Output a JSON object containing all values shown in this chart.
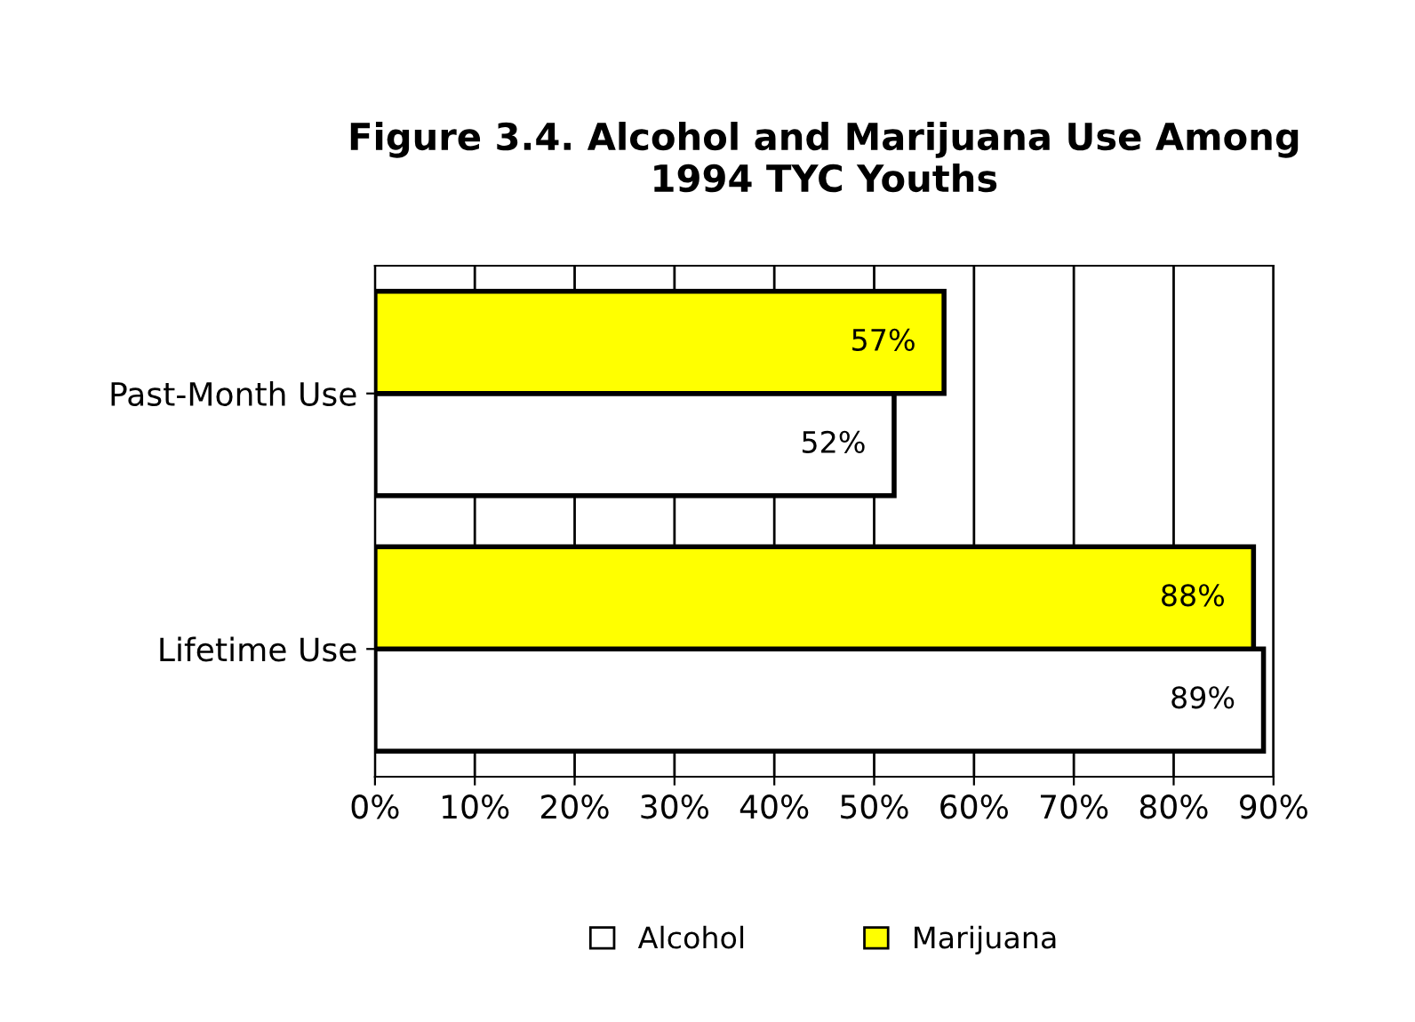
{
  "chart_data": {
    "type": "bar",
    "orientation": "horizontal",
    "title": "Figure 3.4. Alcohol and Marijuana Use Among\n1994 TYC Youths",
    "categories": [
      "Past-Month Use",
      "Lifetime Use"
    ],
    "series": [
      {
        "name": "Alcohol",
        "color": "#ffffff",
        "values": [
          52,
          89
        ],
        "value_labels": [
          "52%",
          "89%"
        ]
      },
      {
        "name": "Marijuana",
        "color": "#ffff00",
        "values": [
          57,
          88
        ],
        "value_labels": [
          "57%",
          "88%"
        ]
      }
    ],
    "xlim": [
      0,
      90
    ],
    "xticks": [
      {
        "value": 0,
        "label": "0%"
      },
      {
        "value": 10,
        "label": "10%"
      },
      {
        "value": 20,
        "label": "20%"
      },
      {
        "value": 30,
        "label": "30%"
      },
      {
        "value": 40,
        "label": "40%"
      },
      {
        "value": 50,
        "label": "50%"
      },
      {
        "value": 60,
        "label": "60%"
      },
      {
        "value": 70,
        "label": "70%"
      },
      {
        "value": 80,
        "label": "80%"
      },
      {
        "value": 90,
        "label": "90%"
      }
    ],
    "grid": "x",
    "legend": "bottom"
  }
}
